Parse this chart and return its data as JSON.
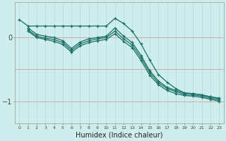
{
  "xlabel": "Humidex (Indice chaleur)",
  "background_color": "#cdeeed",
  "grid_color_v": "#b8dedd",
  "grid_color_h": "#d4a0a0",
  "line_color": "#1a6e65",
  "x_ticks": [
    0,
    1,
    2,
    3,
    4,
    5,
    6,
    7,
    8,
    9,
    10,
    11,
    12,
    13,
    14,
    15,
    16,
    17,
    18,
    19,
    20,
    21,
    22,
    23
  ],
  "y_ticks": [
    0,
    -1
  ],
  "xlim": [
    -0.5,
    23.5
  ],
  "ylim": [
    -1.35,
    0.55
  ],
  "series": [
    {
      "x": [
        0,
        1,
        2,
        3,
        4,
        5,
        6,
        7,
        8,
        9,
        10,
        11,
        12,
        13,
        14,
        15,
        16,
        17,
        18,
        19,
        20,
        21,
        22,
        23
      ],
      "y": [
        0.28,
        0.18,
        0.18,
        0.18,
        0.18,
        0.18,
        0.18,
        0.18,
        0.18,
        0.18,
        0.18,
        0.3,
        0.22,
        0.1,
        -0.1,
        -0.35,
        -0.58,
        -0.7,
        -0.8,
        -0.87,
        -0.88,
        -0.9,
        -0.93,
        -0.95
      ]
    },
    {
      "x": [
        1,
        2,
        3,
        4,
        5,
        6,
        7,
        8,
        9,
        10,
        11,
        12,
        13,
        14,
        15,
        16,
        17,
        18,
        19,
        20,
        21,
        22,
        23
      ],
      "y": [
        0.15,
        0.05,
        0.02,
        0.0,
        -0.05,
        -0.17,
        -0.07,
        -0.02,
        0.0,
        0.02,
        0.15,
        0.02,
        -0.08,
        -0.28,
        -0.52,
        -0.68,
        -0.78,
        -0.83,
        -0.87,
        -0.88,
        -0.9,
        -0.93,
        -0.96
      ]
    },
    {
      "x": [
        1,
        2,
        3,
        4,
        5,
        6,
        7,
        8,
        9,
        10,
        11,
        12,
        13,
        14,
        15,
        16,
        17,
        18,
        19,
        20,
        21,
        22,
        23
      ],
      "y": [
        0.12,
        0.02,
        -0.01,
        -0.03,
        -0.08,
        -0.2,
        -0.1,
        -0.05,
        -0.02,
        0.0,
        0.1,
        -0.02,
        -0.12,
        -0.32,
        -0.55,
        -0.71,
        -0.8,
        -0.85,
        -0.89,
        -0.9,
        -0.92,
        -0.95,
        -0.98
      ]
    },
    {
      "x": [
        1,
        2,
        3,
        4,
        5,
        6,
        7,
        8,
        9,
        10,
        11,
        12,
        13,
        14,
        15,
        16,
        17,
        18,
        19,
        20,
        21,
        22,
        23
      ],
      "y": [
        0.1,
        0.0,
        -0.03,
        -0.06,
        -0.11,
        -0.23,
        -0.13,
        -0.08,
        -0.05,
        -0.03,
        0.06,
        -0.06,
        -0.16,
        -0.36,
        -0.59,
        -0.74,
        -0.83,
        -0.88,
        -0.91,
        -0.92,
        -0.94,
        -0.97,
        -1.0
      ]
    }
  ]
}
